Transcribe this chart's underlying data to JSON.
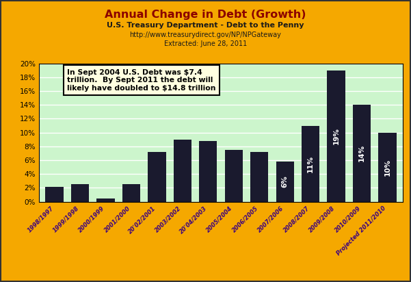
{
  "title": "Annual Change in Debt (Growth)",
  "subtitle1": "U.S. Treasury Department - Debt to the Penny",
  "subtitle2": "http://www.treasurydirect.gov/NP/NPGateway",
  "subtitle3": "Extracted: June 28, 2011",
  "categories": [
    "1998/1997",
    "1999/1998",
    "2000/1999",
    "2001/2000",
    "20'02/2001",
    "2003/2002",
    "20'04/2003",
    "2005/2004",
    "2006/2005",
    "2007/2006",
    "2008/2007",
    "2009/2008",
    "2010/2009",
    "Projected 2011/2010"
  ],
  "values": [
    2.1,
    2.5,
    0.5,
    2.5,
    7.2,
    9.0,
    8.8,
    7.5,
    7.2,
    5.8,
    11.0,
    19.0,
    14.0,
    10.0
  ],
  "bar_color": "#1a1a2e",
  "background_outer": "#F5A800",
  "background_plot": "#ccf5cc",
  "ylim": [
    0,
    20
  ],
  "yticks": [
    0,
    2,
    4,
    6,
    8,
    10,
    12,
    14,
    16,
    18,
    20
  ],
  "ytick_labels": [
    "0%",
    "2%",
    "4%",
    "6%",
    "8%",
    "10%",
    "12%",
    "14%",
    "16%",
    "18%",
    "20%"
  ],
  "title_color": "#8B0000",
  "subtitle_color": "#1a1a1a",
  "xtick_color": "#3a0080",
  "annotation_text": "In Sept 2004 U.S. Debt was $7.4\ntrillion.  By Sept 2011 the debt will\nlikely have doubled to $14.8 trillion",
  "bar_label_indices": [
    9,
    10,
    11,
    12,
    13
  ],
  "bar_labels": [
    "6%",
    "11%",
    "19%",
    "14%",
    "10%"
  ],
  "border_color": "#333333"
}
